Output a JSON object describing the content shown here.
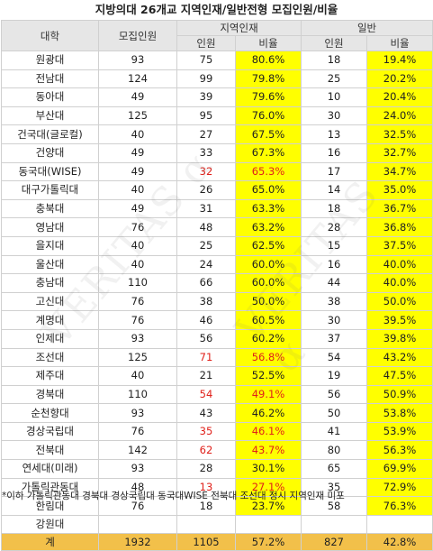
{
  "title": "지방의대 26개교 지역인재/일반전형 모집인원/비율",
  "headers": {
    "univ": "대학",
    "quota": "모집인원",
    "regional": "지역인재",
    "general": "일반",
    "count": "인원",
    "ratio": "비율"
  },
  "rows": [
    {
      "univ": "원광대",
      "quota": "93",
      "reg_n": "75",
      "reg_r": "80.6%",
      "gen_n": "18",
      "gen_r": "19.4%"
    },
    {
      "univ": "전남대",
      "quota": "124",
      "reg_n": "99",
      "reg_r": "79.8%",
      "gen_n": "25",
      "gen_r": "20.2%"
    },
    {
      "univ": "동아대",
      "quota": "49",
      "reg_n": "39",
      "reg_r": "79.6%",
      "gen_n": "10",
      "gen_r": "20.4%"
    },
    {
      "univ": "부산대",
      "quota": "125",
      "reg_n": "95",
      "reg_r": "76.0%",
      "gen_n": "30",
      "gen_r": "24.0%"
    },
    {
      "univ": "건국대(글로컬)",
      "quota": "40",
      "reg_n": "27",
      "reg_r": "67.5%",
      "gen_n": "13",
      "gen_r": "32.5%"
    },
    {
      "univ": "건양대",
      "quota": "49",
      "reg_n": "33",
      "reg_r": "67.3%",
      "gen_n": "16",
      "gen_r": "32.7%"
    },
    {
      "univ": "동국대(WISE)",
      "quota": "49",
      "reg_n": "32",
      "reg_r": "65.3%",
      "gen_n": "17",
      "gen_r": "34.7%",
      "red": true
    },
    {
      "univ": "대구가톨릭대",
      "quota": "40",
      "reg_n": "26",
      "reg_r": "65.0%",
      "gen_n": "14",
      "gen_r": "35.0%"
    },
    {
      "univ": "충북대",
      "quota": "49",
      "reg_n": "31",
      "reg_r": "63.3%",
      "gen_n": "18",
      "gen_r": "36.7%"
    },
    {
      "univ": "영남대",
      "quota": "76",
      "reg_n": "48",
      "reg_r": "63.2%",
      "gen_n": "28",
      "gen_r": "36.8%"
    },
    {
      "univ": "을지대",
      "quota": "40",
      "reg_n": "25",
      "reg_r": "62.5%",
      "gen_n": "15",
      "gen_r": "37.5%"
    },
    {
      "univ": "울산대",
      "quota": "40",
      "reg_n": "24",
      "reg_r": "60.0%",
      "gen_n": "16",
      "gen_r": "40.0%"
    },
    {
      "univ": "충남대",
      "quota": "110",
      "reg_n": "66",
      "reg_r": "60.0%",
      "gen_n": "44",
      "gen_r": "40.0%"
    },
    {
      "univ": "고신대",
      "quota": "76",
      "reg_n": "38",
      "reg_r": "50.0%",
      "gen_n": "38",
      "gen_r": "50.0%"
    },
    {
      "univ": "계명대",
      "quota": "76",
      "reg_n": "46",
      "reg_r": "60.5%",
      "gen_n": "30",
      "gen_r": "39.5%"
    },
    {
      "univ": "인제대",
      "quota": "93",
      "reg_n": "56",
      "reg_r": "60.2%",
      "gen_n": "37",
      "gen_r": "39.8%"
    },
    {
      "univ": "조선대",
      "quota": "125",
      "reg_n": "71",
      "reg_r": "56.8%",
      "gen_n": "54",
      "gen_r": "43.2%",
      "red": true
    },
    {
      "univ": "제주대",
      "quota": "40",
      "reg_n": "21",
      "reg_r": "52.5%",
      "gen_n": "19",
      "gen_r": "47.5%"
    },
    {
      "univ": "경북대",
      "quota": "110",
      "reg_n": "54",
      "reg_r": "49.1%",
      "gen_n": "56",
      "gen_r": "50.9%",
      "red": true
    },
    {
      "univ": "순천향대",
      "quota": "93",
      "reg_n": "43",
      "reg_r": "46.2%",
      "gen_n": "50",
      "gen_r": "53.8%"
    },
    {
      "univ": "경상국립대",
      "quota": "76",
      "reg_n": "35",
      "reg_r": "46.1%",
      "gen_n": "41",
      "gen_r": "53.9%",
      "red": true
    },
    {
      "univ": "전북대",
      "quota": "142",
      "reg_n": "62",
      "reg_r": "43.7%",
      "gen_n": "80",
      "gen_r": "56.3%",
      "red": true
    },
    {
      "univ": "연세대(미래)",
      "quota": "93",
      "reg_n": "28",
      "reg_r": "30.1%",
      "gen_n": "65",
      "gen_r": "69.9%"
    },
    {
      "univ": "가톨릭관동대",
      "quota": "48",
      "reg_n": "13",
      "reg_r": "27.1%",
      "gen_n": "35",
      "gen_r": "72.9%",
      "red": true
    },
    {
      "univ": "한림대",
      "quota": "76",
      "reg_n": "18",
      "reg_r": "23.7%",
      "gen_n": "58",
      "gen_r": "76.3%"
    },
    {
      "univ": "강원대",
      "quota": "",
      "reg_n": "",
      "reg_r": "",
      "gen_n": "",
      "gen_r": "",
      "empty": true
    }
  ],
  "total": {
    "univ": "계",
    "quota": "1932",
    "reg_n": "1105",
    "reg_r": "57.2%",
    "gen_n": "827",
    "gen_r": "42.8%"
  },
  "note": "*이하 가톨릭관동대 경북대 경상국립대 동국대WISE 전북대 조선대 정시 지역인재 미포",
  "watermark": "VERITAS α",
  "colors": {
    "highlight": "#ffff00",
    "total_row": "#f2c04a",
    "header": "#e6e6e6",
    "red_text": "#e0201a"
  }
}
